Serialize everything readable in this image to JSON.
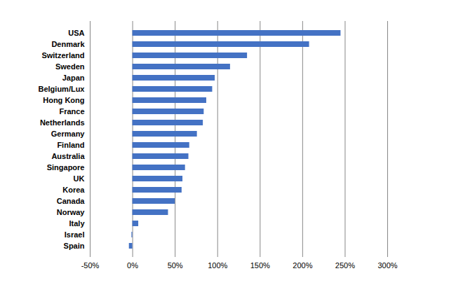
{
  "chart_data": {
    "type": "bar",
    "orientation": "horizontal",
    "color": "#4472c4",
    "grid": true,
    "categories": [
      "USA",
      "Denmark",
      "Switzerland",
      "Sweden",
      "Japan",
      "Belgium/Lux",
      "Hong Kong",
      "France",
      "Netherlands",
      "Germany",
      "Finland",
      "Australia",
      "Singapore",
      "UK",
      "Korea",
      "Canada",
      "Norway",
      "Italy",
      "Israel",
      "Spain"
    ],
    "values": [
      245,
      208,
      135,
      115,
      97,
      94,
      87,
      84,
      83,
      76,
      67,
      66,
      62,
      59,
      58,
      50,
      42,
      7,
      -1,
      -4
    ],
    "xlim": [
      -50,
      300
    ],
    "xticks": [
      {
        "value": -50,
        "label": "-50%"
      },
      {
        "value": 0,
        "label": "0%"
      },
      {
        "value": 50,
        "label": "50%"
      },
      {
        "value": 100,
        "label": "100%"
      },
      {
        "value": 150,
        "label": "150%"
      },
      {
        "value": 200,
        "label": "200%"
      },
      {
        "value": 250,
        "label": "250%"
      },
      {
        "value": 300,
        "label": "300%"
      }
    ]
  }
}
